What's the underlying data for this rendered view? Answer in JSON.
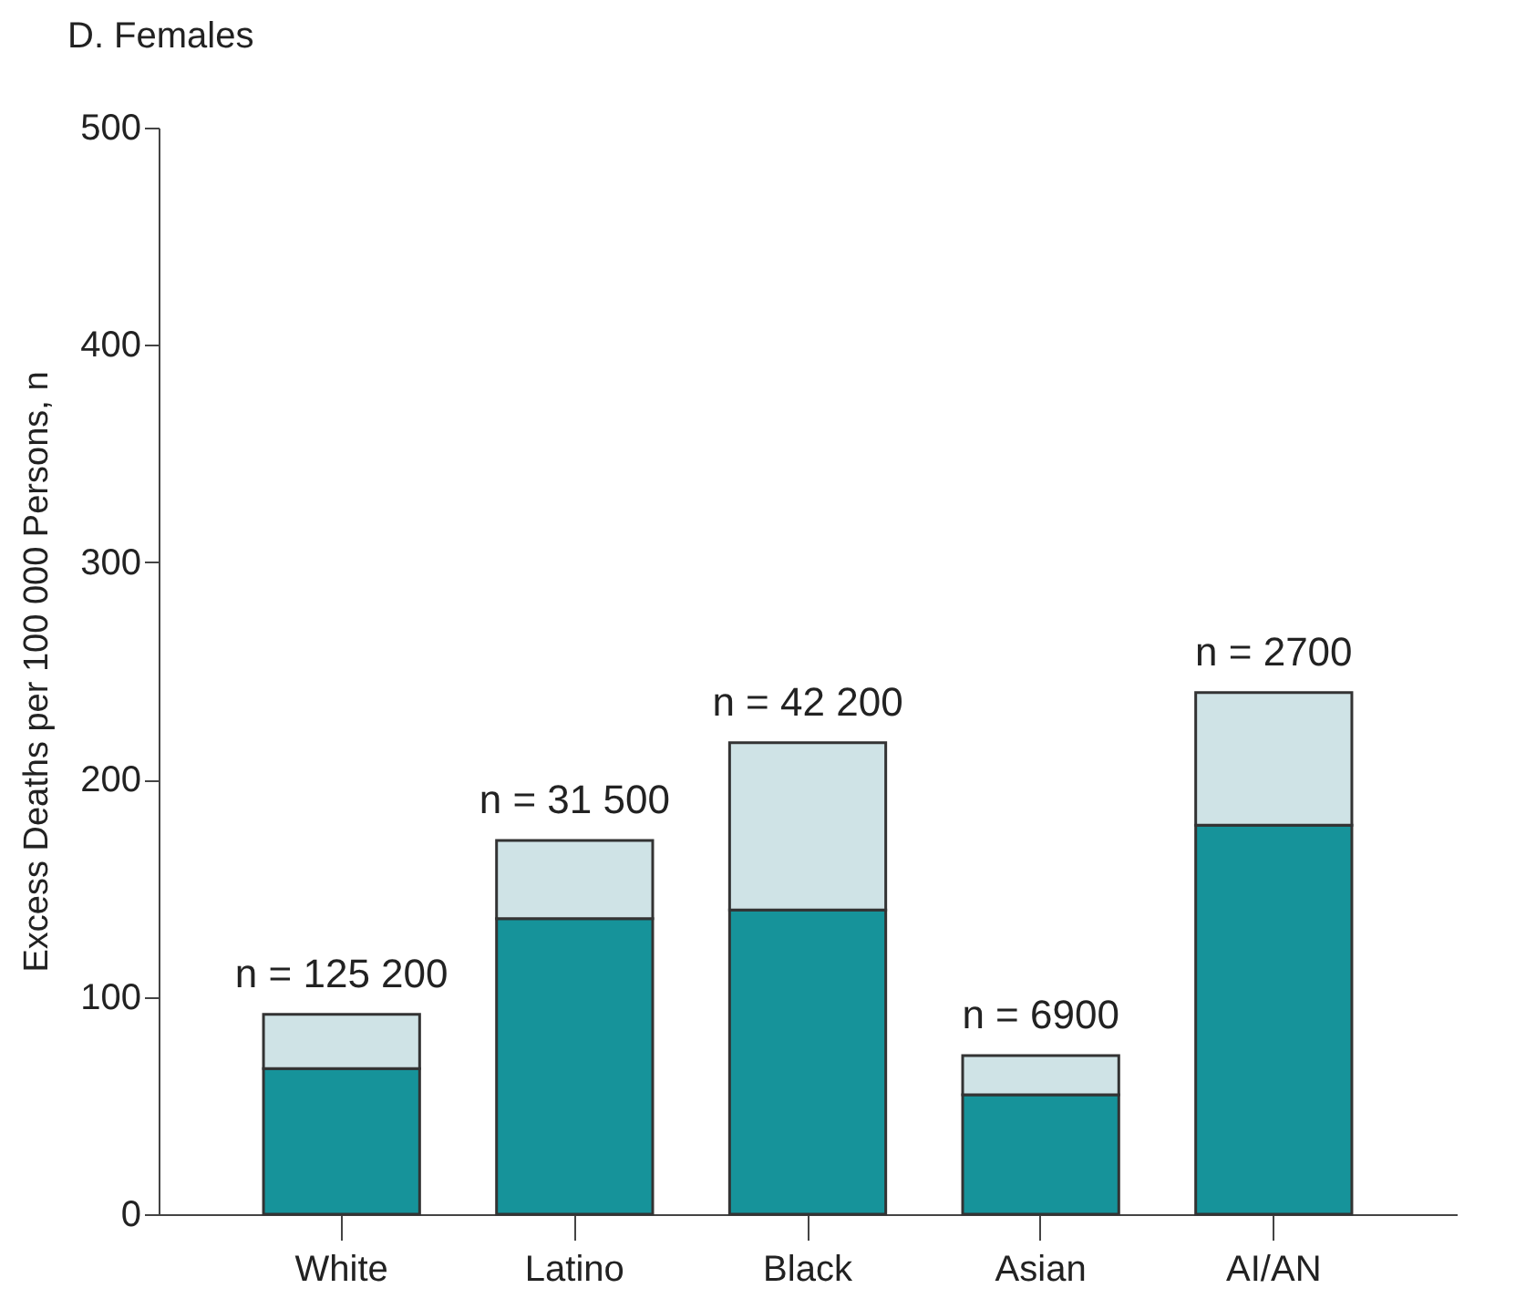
{
  "chart_data": {
    "type": "bar",
    "title": "D. Females",
    "ylabel": "Excess Deaths per 100 000 Persons, n",
    "categories": [
      "White",
      "Latino",
      "Black",
      "Asian",
      "AI/AN"
    ],
    "stacked": true,
    "series": [
      {
        "color": "#16939a",
        "values": [
          67,
          136,
          140,
          55,
          179
        ]
      },
      {
        "color": "#cfe3e6",
        "values": [
          25,
          36,
          77,
          18,
          61
        ]
      }
    ],
    "ylim": [
      0,
      500
    ],
    "yticks": [
      0,
      100,
      200,
      300,
      400,
      500
    ],
    "grid": false,
    "legend": false,
    "annotations": [
      {
        "text": "n = 125 200",
        "x": "White",
        "y": 92
      },
      {
        "text": "n = 31 500",
        "x": "Latino",
        "y": 172
      },
      {
        "text": "n = 42 200",
        "x": "Black",
        "y": 217
      },
      {
        "text": "n = 6900",
        "x": "Asian",
        "y": 73
      },
      {
        "text": "n = 2700",
        "x": "AI/AN",
        "y": 240
      }
    ]
  }
}
